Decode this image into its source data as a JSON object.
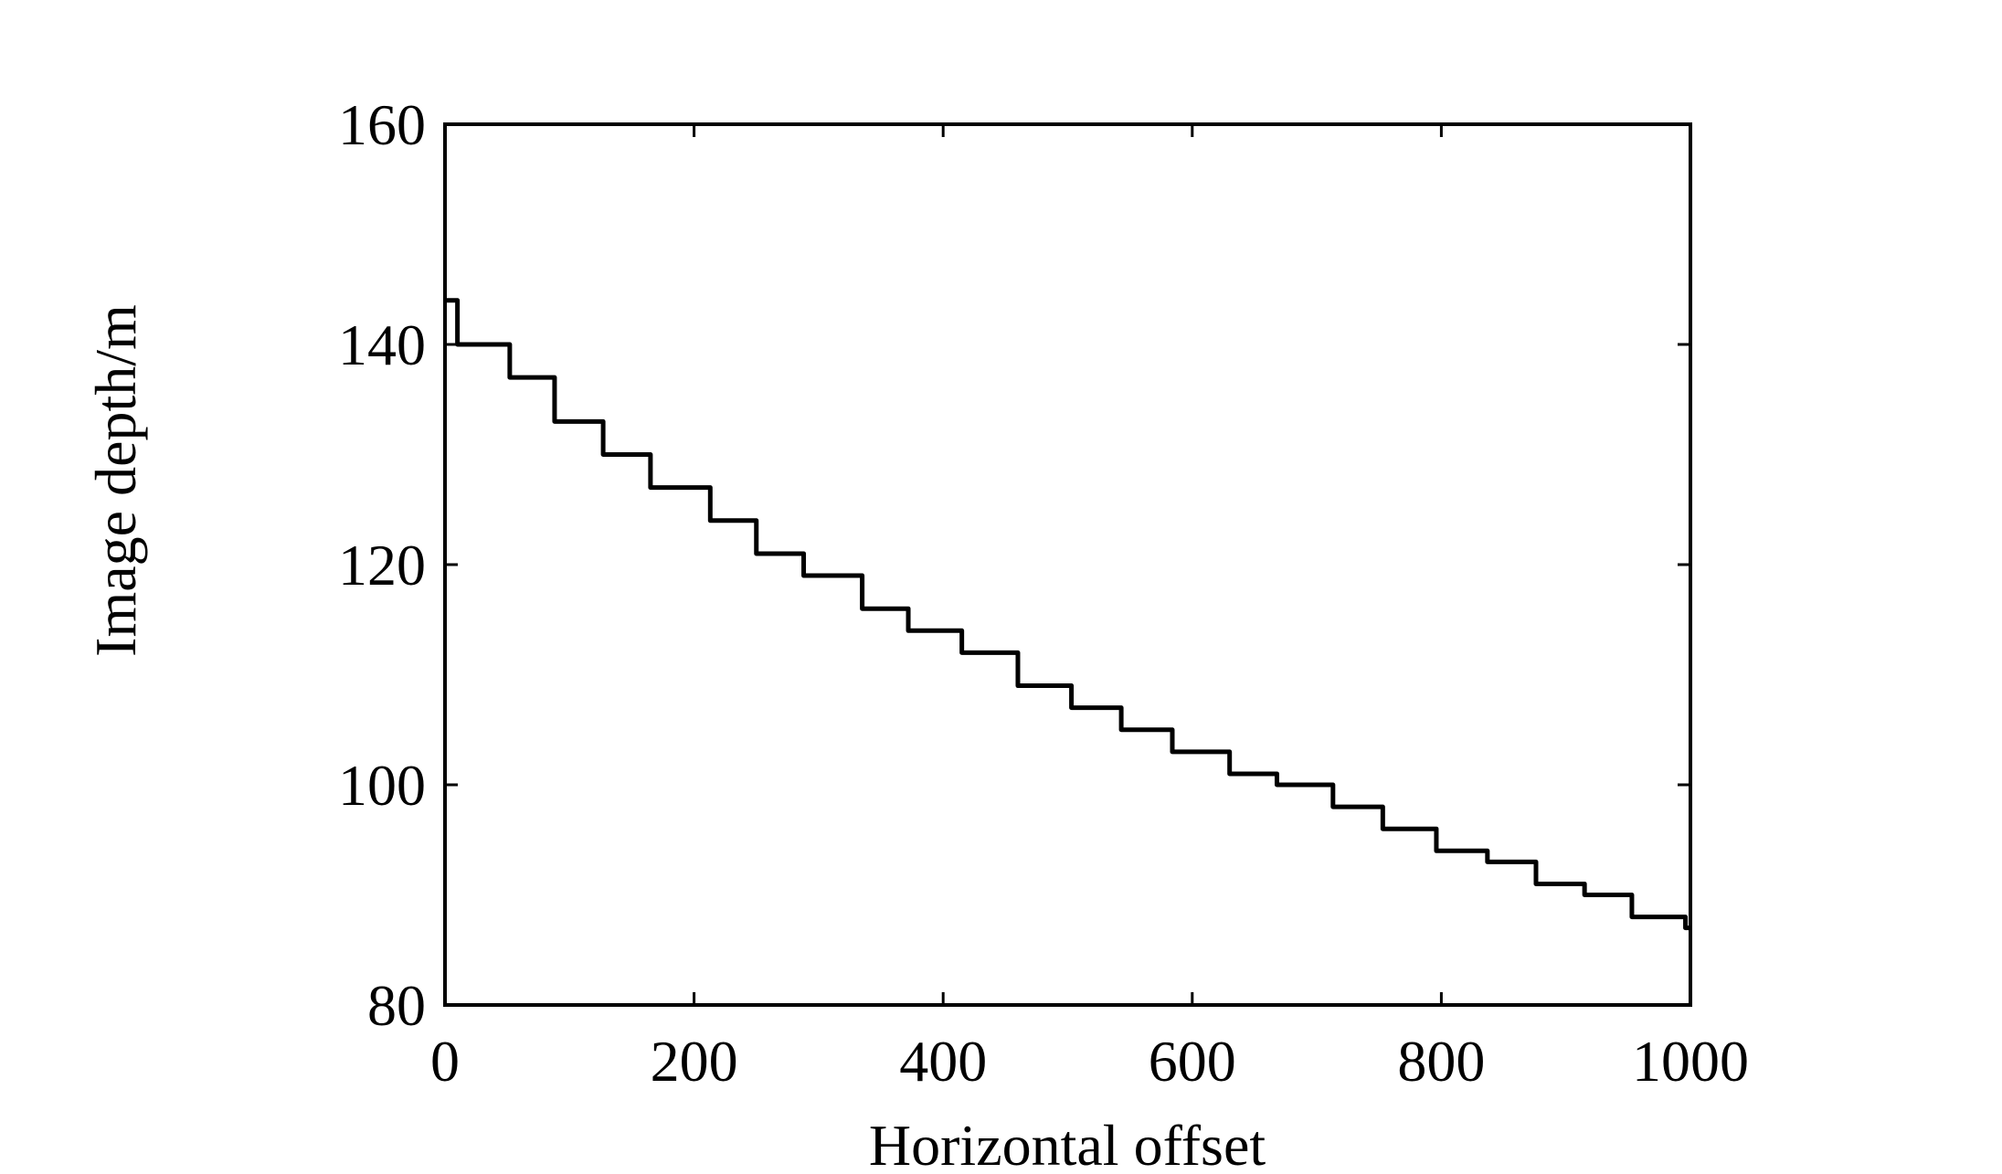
{
  "chart_data": {
    "type": "line",
    "x_label": "Horizontal offset",
    "y_label": "Image depth/m",
    "x": [
      0,
      10,
      10,
      52,
      52,
      88,
      88,
      127,
      127,
      165,
      165,
      213,
      213,
      250,
      250,
      288,
      288,
      335,
      335,
      372,
      372,
      415,
      415,
      460,
      460,
      503,
      503,
      543,
      543,
      584,
      584,
      630,
      630,
      668,
      668,
      713,
      713,
      753,
      753,
      796,
      796,
      837,
      837,
      876,
      876,
      915,
      915,
      953,
      953,
      996,
      996,
      1000
    ],
    "series": [
      {
        "color": "#000000",
        "values": [
          144,
          144,
          140,
          140,
          137,
          137,
          133,
          133,
          130,
          130,
          127,
          127,
          124,
          124,
          121,
          121,
          119,
          119,
          116,
          116,
          114,
          114,
          112,
          112,
          109,
          109,
          107,
          107,
          105,
          105,
          103,
          103,
          101,
          101,
          100,
          100,
          98,
          98,
          96,
          96,
          94,
          94,
          93,
          93,
          91,
          91,
          90,
          90,
          88,
          88,
          87,
          87
        ]
      }
    ],
    "xlim": [
      0,
      1000
    ],
    "xticks": [
      0,
      200,
      400,
      600,
      800,
      1000
    ],
    "ylim": [
      80,
      160
    ],
    "yticks": [
      80,
      100,
      120,
      140,
      160
    ],
    "grid": false
  }
}
